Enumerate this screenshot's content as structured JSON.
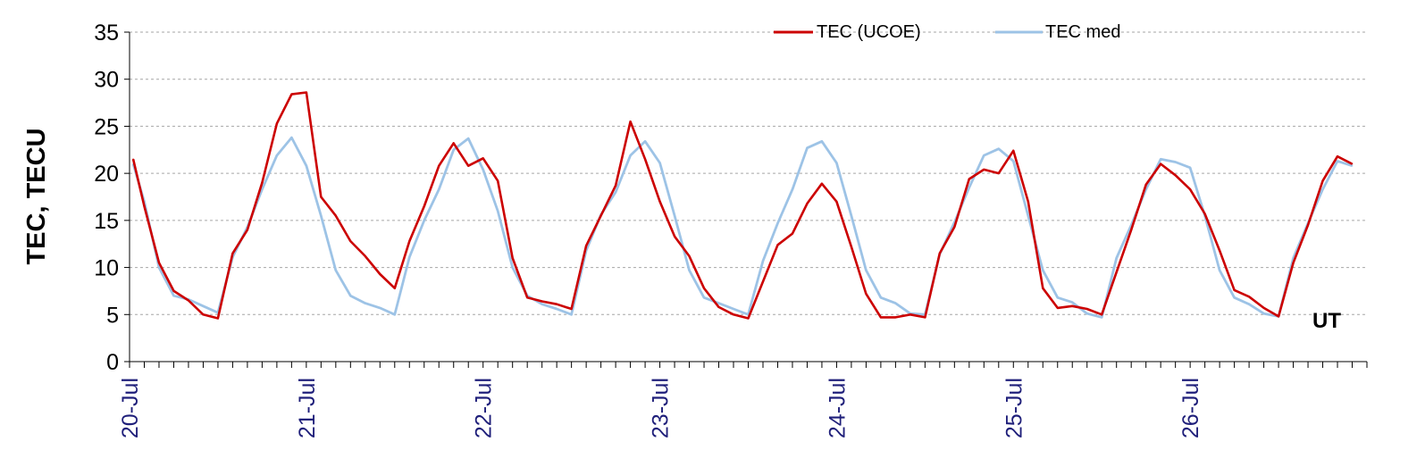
{
  "chart_data": {
    "type": "line",
    "title": "",
    "xlabel": "",
    "ylabel": "TEC, TECU",
    "annotation": "UT",
    "ylim": [
      0,
      35
    ],
    "yticks": [
      0,
      5,
      10,
      15,
      20,
      25,
      30,
      35
    ],
    "grid": "horizontal dashed",
    "legend_position": "top-right",
    "x_unit": "hours since 20-Jul 00:00 UT",
    "x_range": [
      0,
      168
    ],
    "x_ticks": [
      {
        "x": 0,
        "label": "20-Jul"
      },
      {
        "x": 24,
        "label": "21-Jul"
      },
      {
        "x": 48,
        "label": "22-Jul"
      },
      {
        "x": 72,
        "label": "23-Jul"
      },
      {
        "x": 96,
        "label": "24-Jul"
      },
      {
        "x": 120,
        "label": "25-Jul"
      },
      {
        "x": 144,
        "label": "26-Jul"
      }
    ],
    "series": [
      {
        "name": "TEC (UCOE)",
        "color": "#cc0000",
        "points": [
          [
            0.5,
            21.5
          ],
          [
            2,
            16.5
          ],
          [
            4,
            10.5
          ],
          [
            6,
            7.5
          ],
          [
            8,
            6.5
          ],
          [
            10,
            5
          ],
          [
            12,
            4.6
          ],
          [
            14,
            11.5
          ],
          [
            16,
            14
          ],
          [
            18,
            19
          ],
          [
            20,
            25.3
          ],
          [
            22,
            28.4
          ],
          [
            24,
            28.6
          ],
          [
            26,
            17.5
          ],
          [
            28,
            15.5
          ],
          [
            30,
            12.8
          ],
          [
            32,
            11.2
          ],
          [
            34,
            9.3
          ],
          [
            36,
            7.8
          ],
          [
            38,
            12.8
          ],
          [
            40,
            16.5
          ],
          [
            42,
            20.8
          ],
          [
            44,
            23.2
          ],
          [
            46,
            20.8
          ],
          [
            48,
            21.6
          ],
          [
            50,
            19.2
          ],
          [
            52,
            11
          ],
          [
            54,
            6.8
          ],
          [
            56,
            6.4
          ],
          [
            58,
            6.1
          ],
          [
            60,
            5.6
          ],
          [
            62,
            12.3
          ],
          [
            64,
            15.5
          ],
          [
            66,
            18.7
          ],
          [
            68,
            25.5
          ],
          [
            70,
            21.5
          ],
          [
            72,
            17
          ],
          [
            74,
            13.3
          ],
          [
            76,
            11.2
          ],
          [
            78,
            7.8
          ],
          [
            80,
            5.8
          ],
          [
            82,
            5
          ],
          [
            84,
            4.6
          ],
          [
            86,
            8.5
          ],
          [
            88,
            12.4
          ],
          [
            90,
            13.6
          ],
          [
            92,
            16.8
          ],
          [
            94,
            18.9
          ],
          [
            96,
            17
          ],
          [
            98,
            12.2
          ],
          [
            100,
            7.2
          ],
          [
            102,
            4.7
          ],
          [
            104,
            4.7
          ],
          [
            106,
            5
          ],
          [
            108,
            4.7
          ],
          [
            110,
            11.5
          ],
          [
            112,
            14.3
          ],
          [
            114,
            19.4
          ],
          [
            116,
            20.4
          ],
          [
            118,
            20
          ],
          [
            120,
            22.4
          ],
          [
            122,
            17
          ],
          [
            124,
            7.8
          ],
          [
            126,
            5.7
          ],
          [
            128,
            5.9
          ],
          [
            130,
            5.6
          ],
          [
            132,
            5
          ],
          [
            134,
            9.5
          ],
          [
            136,
            14
          ],
          [
            138,
            18.8
          ],
          [
            140,
            21
          ],
          [
            142,
            19.8
          ],
          [
            144,
            18.3
          ],
          [
            146,
            15.7
          ],
          [
            148,
            11.8
          ],
          [
            150,
            7.6
          ],
          [
            152,
            6.9
          ],
          [
            154,
            5.7
          ],
          [
            156,
            4.8
          ],
          [
            158,
            10.5
          ],
          [
            160,
            14.5
          ],
          [
            162,
            19.2
          ],
          [
            164,
            21.8
          ],
          [
            166,
            21
          ]
        ]
      },
      {
        "name": "TEC med",
        "color": "#9dc3e6",
        "points": [
          [
            0.5,
            21
          ],
          [
            2,
            17
          ],
          [
            4,
            10
          ],
          [
            6,
            7
          ],
          [
            8,
            6.6
          ],
          [
            10,
            5.9
          ],
          [
            12,
            5.2
          ],
          [
            14,
            11.1
          ],
          [
            16,
            14.3
          ],
          [
            18,
            18.3
          ],
          [
            20,
            21.9
          ],
          [
            22,
            23.8
          ],
          [
            24,
            20.8
          ],
          [
            26,
            15.5
          ],
          [
            28,
            9.7
          ],
          [
            30,
            7
          ],
          [
            32,
            6.2
          ],
          [
            34,
            5.7
          ],
          [
            36,
            5
          ],
          [
            38,
            11.1
          ],
          [
            40,
            15
          ],
          [
            42,
            18.3
          ],
          [
            44,
            22.5
          ],
          [
            46,
            23.7
          ],
          [
            48,
            20.4
          ],
          [
            50,
            16
          ],
          [
            52,
            10
          ],
          [
            54,
            7
          ],
          [
            56,
            6.1
          ],
          [
            58,
            5.6
          ],
          [
            60,
            5
          ],
          [
            62,
            11.8
          ],
          [
            64,
            15.6
          ],
          [
            66,
            18
          ],
          [
            68,
            21.9
          ],
          [
            70,
            23.4
          ],
          [
            72,
            21.1
          ],
          [
            74,
            15.5
          ],
          [
            76,
            9.7
          ],
          [
            78,
            6.8
          ],
          [
            80,
            6.2
          ],
          [
            82,
            5.6
          ],
          [
            84,
            5
          ],
          [
            86,
            10.7
          ],
          [
            88,
            14.7
          ],
          [
            90,
            18.3
          ],
          [
            92,
            22.7
          ],
          [
            94,
            23.4
          ],
          [
            96,
            21.1
          ],
          [
            98,
            15.5
          ],
          [
            100,
            9.7
          ],
          [
            102,
            6.8
          ],
          [
            104,
            6.2
          ],
          [
            106,
            5.1
          ],
          [
            108,
            5
          ],
          [
            110,
            11.4
          ],
          [
            112,
            14.8
          ],
          [
            114,
            18.5
          ],
          [
            116,
            21.9
          ],
          [
            118,
            22.6
          ],
          [
            120,
            21.3
          ],
          [
            122,
            15.5
          ],
          [
            124,
            9.7
          ],
          [
            126,
            6.8
          ],
          [
            128,
            6.3
          ],
          [
            130,
            5.1
          ],
          [
            132,
            4.7
          ],
          [
            134,
            11
          ],
          [
            136,
            14.5
          ],
          [
            138,
            18.3
          ],
          [
            140,
            21.5
          ],
          [
            142,
            21.2
          ],
          [
            144,
            20.6
          ],
          [
            146,
            15.5
          ],
          [
            148,
            9.7
          ],
          [
            150,
            6.8
          ],
          [
            152,
            6.1
          ],
          [
            154,
            5.1
          ],
          [
            156,
            4.8
          ],
          [
            158,
            11
          ],
          [
            160,
            14.7
          ],
          [
            162,
            18.3
          ],
          [
            164,
            21.3
          ],
          [
            166,
            20.8
          ]
        ]
      }
    ]
  }
}
